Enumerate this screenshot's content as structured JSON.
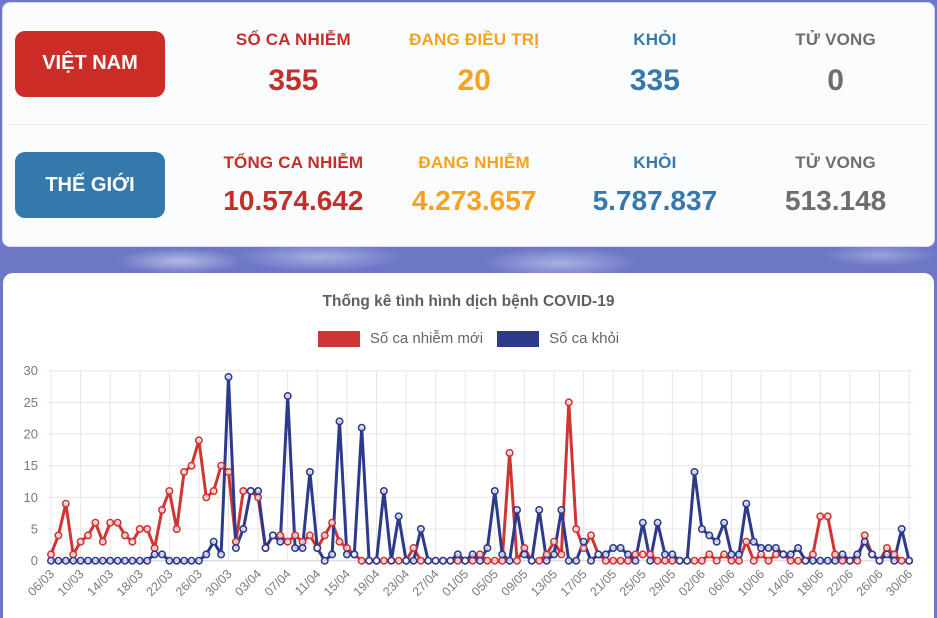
{
  "summary": {
    "vietnam": {
      "region_label": "VIỆT NAM",
      "stats": [
        {
          "label": "SỐ CA NHIỄM",
          "value": "355",
          "color": "#c1302b"
        },
        {
          "label": "ĐANG ĐIỀU TRỊ",
          "value": "20",
          "color": "#f6a21c"
        },
        {
          "label": "KHỎI",
          "value": "335",
          "color": "#3578ab"
        },
        {
          "label": "TỬ VONG",
          "value": "0",
          "color": "#6d6e71"
        }
      ]
    },
    "world": {
      "region_label": "THẾ GIỚI",
      "stats": [
        {
          "label": "TỔNG CA NHIỄM",
          "value": "10.574.642",
          "color": "#c1302b"
        },
        {
          "label": "ĐANG NHIỄM",
          "value": "4.273.657",
          "color": "#f6a21c"
        },
        {
          "label": "KHỎI",
          "value": "5.787.837",
          "color": "#3578ab"
        },
        {
          "label": "TỬ VONG",
          "value": "513.148",
          "color": "#6d6e71"
        }
      ]
    }
  },
  "colors": {
    "page_background": "#6e77c6",
    "vietnam_button": "#cb2d26",
    "world_button": "#3578ab",
    "new_cases_line": "#cf3533",
    "recovered_line": "#2d3a8c"
  },
  "chart_data": {
    "type": "line",
    "title": "Thống kê tình hình dịch bệnh COVID-19",
    "x_start": "06/03",
    "x_end": "30/06",
    "x_tick_labels": [
      "06/03",
      "10/03",
      "14/03",
      "18/03",
      "22/03",
      "26/03",
      "30/03",
      "03/04",
      "07/04",
      "11/04",
      "15/04",
      "19/04",
      "23/04",
      "27/04",
      "01/05",
      "05/05",
      "09/05",
      "13/05",
      "17/05",
      "21/05",
      "25/05",
      "29/05",
      "02/06",
      "06/06",
      "10/06",
      "14/06",
      "18/06",
      "22/06",
      "26/06",
      "30/06"
    ],
    "ylim": [
      0,
      30
    ],
    "yticks": [
      0,
      5,
      10,
      15,
      20,
      25,
      30
    ],
    "grid": true,
    "legend_position": "top",
    "series": [
      {
        "name": "Số ca nhiễm mới",
        "color": "#cf3533",
        "values": [
          1,
          4,
          9,
          1,
          3,
          4,
          6,
          3,
          6,
          6,
          4,
          3,
          5,
          5,
          2,
          8,
          11,
          5,
          14,
          15,
          19,
          10,
          11,
          15,
          14,
          3,
          11,
          11,
          10,
          2,
          4,
          4,
          3,
          4,
          3,
          4,
          2,
          4,
          6,
          3,
          2,
          1,
          0,
          0,
          0,
          0,
          0,
          0,
          0,
          2,
          0,
          0,
          0,
          0,
          0,
          0,
          0,
          0,
          1,
          0,
          0,
          0,
          17,
          0,
          2,
          0,
          0,
          1,
          3,
          1,
          25,
          5,
          2,
          4,
          1,
          0,
          0,
          0,
          0,
          1,
          1,
          1,
          0,
          0,
          0,
          0,
          0,
          0,
          0,
          1,
          0,
          1,
          0,
          0,
          3,
          0,
          1,
          0,
          1,
          1,
          0,
          0,
          0,
          1,
          7,
          7,
          1,
          0,
          0,
          0,
          4,
          1,
          0,
          2,
          1,
          0,
          0
        ]
      },
      {
        "name": "Số ca khỏi",
        "color": "#2d3a8c",
        "values": [
          0,
          0,
          0,
          0,
          0,
          0,
          0,
          0,
          0,
          0,
          0,
          0,
          0,
          0,
          1,
          1,
          0,
          0,
          0,
          0,
          0,
          1,
          3,
          1,
          29,
          2,
          5,
          11,
          11,
          2,
          4,
          3,
          26,
          2,
          2,
          14,
          2,
          0,
          1,
          22,
          1,
          1,
          21,
          0,
          0,
          11,
          0,
          7,
          0,
          0,
          5,
          0,
          0,
          0,
          0,
          1,
          0,
          1,
          0,
          2,
          11,
          1,
          0,
          8,
          1,
          0,
          8,
          0,
          1,
          8,
          0,
          0,
          3,
          0,
          1,
          1,
          2,
          2,
          1,
          0,
          6,
          0,
          6,
          1,
          1,
          0,
          0,
          14,
          5,
          4,
          3,
          6,
          1,
          1,
          9,
          3,
          2,
          2,
          2,
          1,
          1,
          2,
          0,
          0,
          0,
          0,
          0,
          1,
          0,
          1,
          3,
          1,
          0,
          1,
          0,
          5,
          0
        ]
      }
    ]
  }
}
